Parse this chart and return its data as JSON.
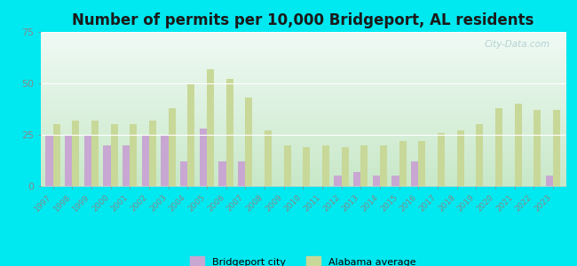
{
  "title": "Number of permits per 10,000 Bridgeport, AL residents",
  "years": [
    1997,
    1998,
    1999,
    2000,
    2001,
    2002,
    2003,
    2004,
    2005,
    2006,
    2007,
    2008,
    2009,
    2010,
    2011,
    2012,
    2013,
    2014,
    2015,
    2016,
    2017,
    2018,
    2019,
    2020,
    2021,
    2022,
    2023
  ],
  "city_values": [
    25,
    25,
    25,
    20,
    20,
    25,
    25,
    12,
    28,
    12,
    12,
    0,
    0,
    0,
    0,
    5,
    7,
    5,
    5,
    12,
    0,
    0,
    0,
    0,
    0,
    0,
    5
  ],
  "state_values": [
    30,
    32,
    32,
    30,
    30,
    32,
    38,
    50,
    57,
    52,
    43,
    27,
    20,
    19,
    20,
    19,
    20,
    20,
    22,
    22,
    26,
    27,
    30,
    38,
    40,
    37,
    37
  ],
  "city_color": "#c8a8d2",
  "state_color": "#c8d898",
  "background_fig": "#00e8f0",
  "ylim": [
    0,
    75
  ],
  "yticks": [
    0,
    25,
    50,
    75
  ],
  "bar_width": 0.38,
  "legend_city": "Bridgeport city",
  "legend_state": "Alabama average",
  "title_fontsize": 12,
  "watermark": "City-Data.com",
  "grad_top": "#f0faf5",
  "grad_bottom": "#c8e8c8"
}
